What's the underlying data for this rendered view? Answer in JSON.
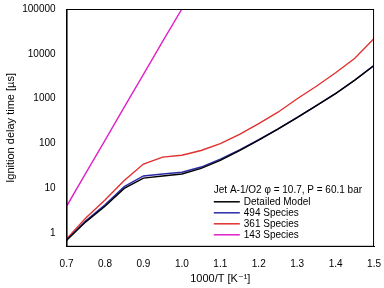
{
  "chart_data": {
    "type": "line",
    "x_label": "1000/T [K⁻¹]",
    "y_label": "Ignition delay time [µs]",
    "annotation": "Jet A-1/O2 φ = 10.7, P = 60.1 bar",
    "log": "y",
    "grid": false,
    "legend": "lower right",
    "xlim": [
      0.7,
      1.5
    ],
    "xticks": [
      0.7,
      0.8,
      0.9,
      {
        "value": 1,
        "label": "1.0"
      },
      1.1,
      1.2,
      1.3,
      1.4,
      1.5
    ],
    "ylim": [
      0.5,
      100000
    ],
    "yticks": [
      1,
      10,
      100,
      1000,
      10000,
      100000
    ],
    "x": [
      0.7,
      0.75,
      0.8,
      0.85,
      0.9,
      0.95,
      1.0,
      1.05,
      1.1,
      1.15,
      1.2,
      1.25,
      1.3,
      1.35,
      1.4,
      1.45,
      1.5
    ],
    "series": [
      {
        "name": "Detailed Model",
        "color": "#000000",
        "values": [
          0.7,
          1.8,
          4,
          10,
          17,
          19,
          21,
          28,
          42,
          70,
          120,
          210,
          380,
          700,
          1300,
          2600,
          5500
        ]
      },
      {
        "name": "494 Species",
        "color": "#2a2aa8",
        "values": [
          0.7,
          1.9,
          4.3,
          11,
          19,
          21,
          23,
          30,
          45,
          72,
          122,
          212,
          385,
          705,
          1310,
          2620,
          5550
        ]
      },
      {
        "name": "361 Species",
        "color": "#e0312f",
        "values": [
          0.75,
          2.2,
          5.5,
          15,
          35,
          50,
          55,
          70,
          100,
          160,
          280,
          500,
          1000,
          1900,
          3800,
          8000,
          22000
        ]
      },
      {
        "name": "143 Species",
        "color": "#e020c8",
        "values": [
          4,
          22,
          118,
          650,
          3500,
          19000,
          100000,
          null,
          null,
          null,
          null,
          null,
          null,
          null,
          null,
          null,
          null
        ]
      }
    ]
  }
}
